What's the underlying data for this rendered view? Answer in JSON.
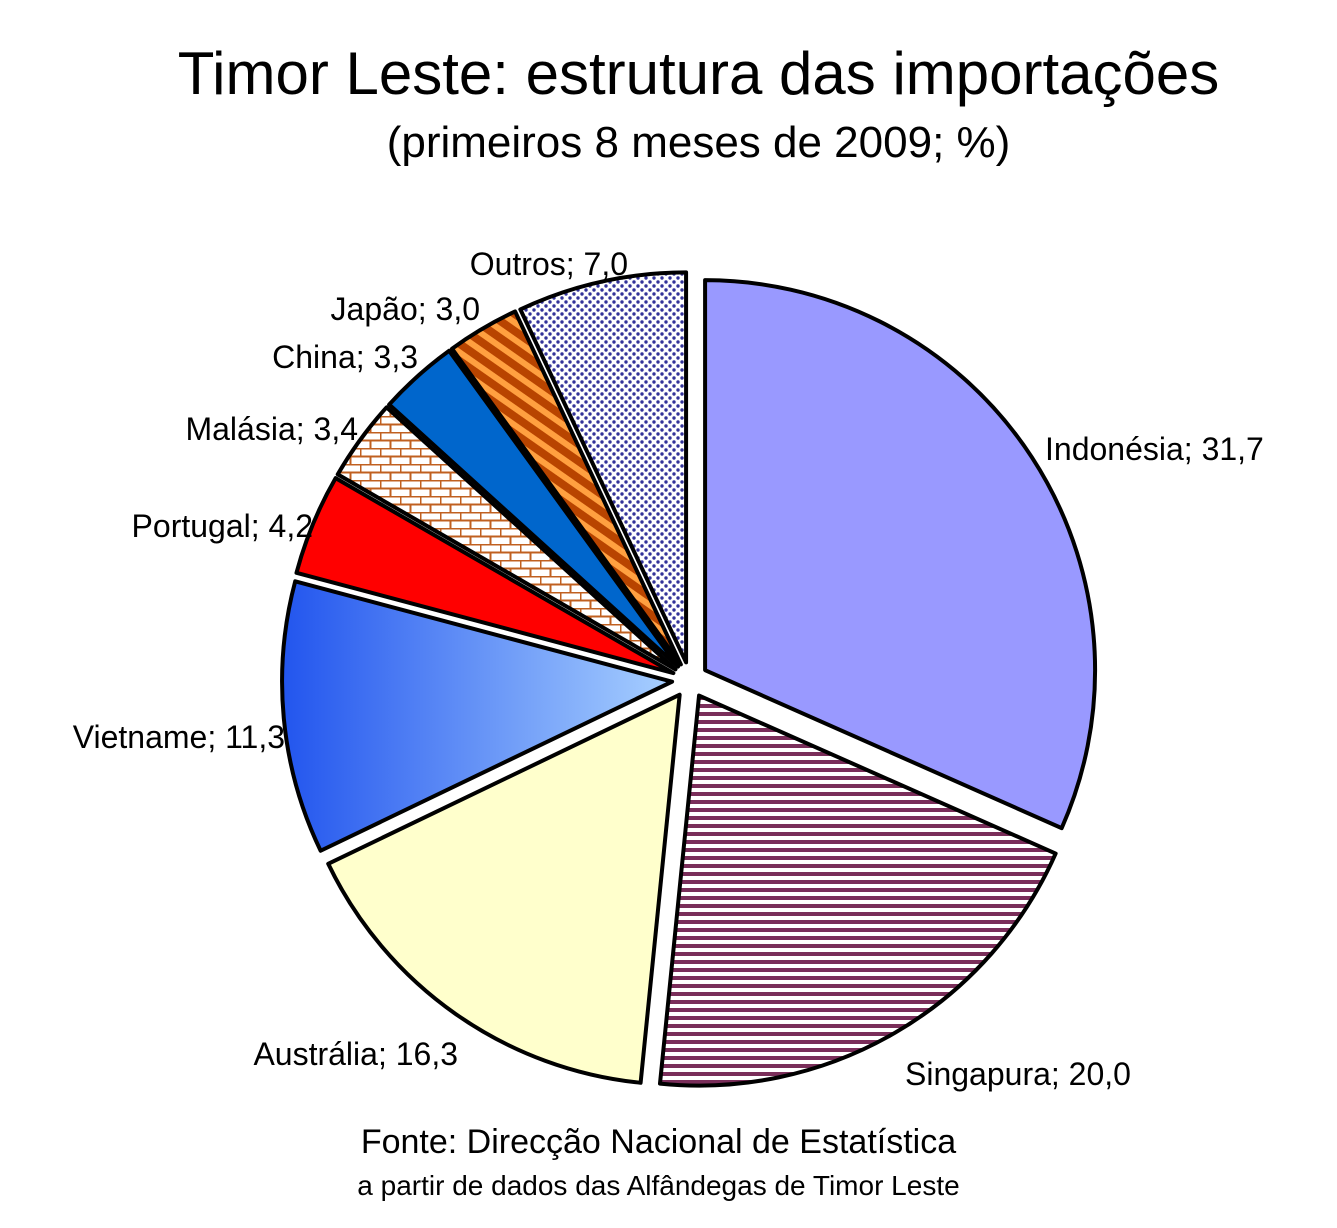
{
  "chart_data": {
    "type": "pie",
    "title": "Timor Leste: estrutura das importações",
    "subtitle": "(primeiros 8 meses de 2009; %)",
    "label_separator": "; ",
    "slices": [
      {
        "name": "Indonésia",
        "value": 31.7,
        "display": "31,7",
        "color": "#9999FF"
      },
      {
        "name": "Singapura",
        "value": 20.0,
        "display": "20,0",
        "color": "#7A2E5A"
      },
      {
        "name": "Austrália",
        "value": 16.3,
        "display": "16,3",
        "color": "#FFFFCC"
      },
      {
        "name": "Vietname",
        "value": 11.3,
        "display": "11,3",
        "color": "#3366FF"
      },
      {
        "name": "Portugal",
        "value": 4.2,
        "display": "4,2",
        "color": "#FF0000"
      },
      {
        "name": "Malásia",
        "value": 3.4,
        "display": "3,4",
        "color": "#C06020"
      },
      {
        "name": "China",
        "value": 3.3,
        "display": "3,3",
        "color": "#0066CC"
      },
      {
        "name": "Japão",
        "value": 3.0,
        "display": "3,0",
        "color": "#E07000"
      },
      {
        "name": "Outros",
        "value": 7.0,
        "display": "7,0",
        "color": "#333399"
      }
    ]
  },
  "footer": {
    "source": "Fonte: Direcção Nacional de Estatística",
    "source_detail": "a partir de dados das Alfândegas de Timor Leste"
  }
}
